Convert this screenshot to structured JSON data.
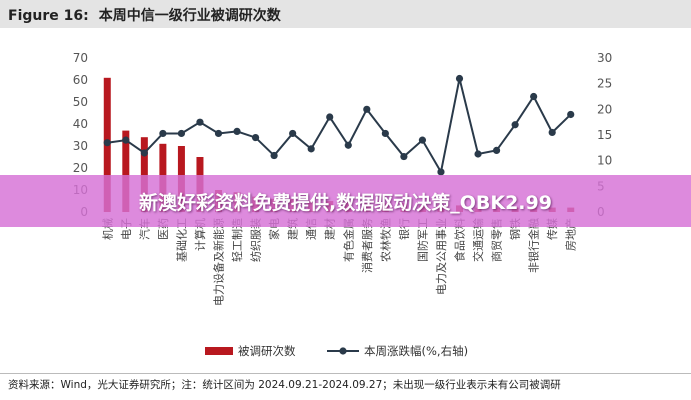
{
  "title": {
    "fig_label": "Figure 16:",
    "text": "本周中信一级行业被调研次数"
  },
  "banner": {
    "text": "新澳好彩资料免费提供,数据驱动决策_QBK2.99"
  },
  "source": "资料来源：Wind，光大证券研究所；注：统计区间为 2024.09.21-2024.09.27；未出现一级行业表示未有公司被调研",
  "colors": {
    "bar": "#b8181f",
    "line": "#2a3a4a",
    "banner": "#d670d6"
  },
  "chart_data": {
    "type": "bar+line",
    "categories": [
      "机械",
      "电子",
      "汽车",
      "医药",
      "基础化工",
      "计算机",
      "电力设备及新能源",
      "轻工制造",
      "纺织服装",
      "家电",
      "建筑",
      "通信",
      "建材",
      "有色金属",
      "消费者服务",
      "农林牧渔",
      "银行",
      "国防军工",
      "电力及公用事业",
      "食品饮料",
      "交通运输",
      "商贸零售",
      "钢铁",
      "非银行金融",
      "传媒",
      "房地产"
    ],
    "series": [
      {
        "name": "被调研次数",
        "type": "bar",
        "axis": "left",
        "values": [
          61,
          37,
          34,
          31,
          30,
          25,
          10,
          9,
          7,
          6,
          6,
          5,
          5,
          5,
          4,
          4,
          4,
          3,
          3,
          3,
          2,
          2,
          2,
          2,
          2,
          2
        ]
      },
      {
        "name": "本周涨跌幅(%,右轴)",
        "type": "line",
        "axis": "right",
        "values": [
          13.5,
          14,
          11.5,
          15.3,
          15.3,
          17.5,
          15.3,
          15.7,
          14.5,
          11,
          15.3,
          12.3,
          18.5,
          13,
          20,
          15.3,
          10.8,
          14,
          7.8,
          26,
          11.3,
          12,
          17,
          22.5,
          15.5,
          19
        ]
      }
    ],
    "ylim_left": [
      0,
      70
    ],
    "yticks_left": [
      0,
      10,
      20,
      30,
      40,
      50,
      60,
      70
    ],
    "ylim_right": [
      0,
      30
    ],
    "yticks_right": [
      0,
      5,
      10,
      15,
      20,
      25,
      30
    ],
    "legend": [
      "被调研次数",
      "本周涨跌幅(%,右轴)"
    ],
    "legend_position": "bottom-center"
  }
}
